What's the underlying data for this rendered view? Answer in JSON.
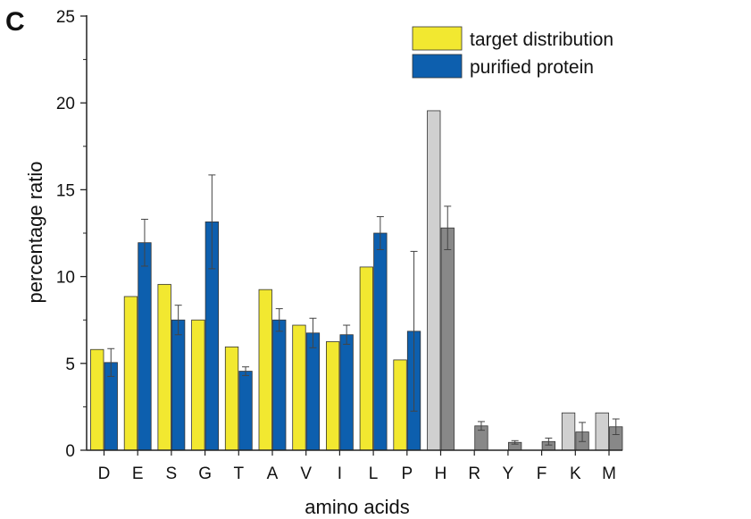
{
  "panel_label": "C",
  "chart_data": {
    "type": "bar",
    "xlabel": "amino acids",
    "ylabel": "percentage ratio",
    "ylim": [
      0,
      25
    ],
    "yticks": [
      0,
      5,
      10,
      15,
      20,
      25
    ],
    "grid": false,
    "legend_position": "top-right",
    "categories": [
      "D",
      "E",
      "S",
      "G",
      "T",
      "A",
      "V",
      "I",
      "L",
      "P",
      "H",
      "R",
      "Y",
      "F",
      "K",
      "M"
    ],
    "series": [
      {
        "name": "target distribution",
        "color": "#F2E830",
        "values": [
          5.8,
          8.85,
          9.55,
          7.5,
          5.95,
          9.25,
          7.2,
          6.25,
          10.55,
          5.2,
          19.55,
          null,
          null,
          null,
          2.15,
          2.15
        ],
        "point_colors": [
          null,
          null,
          null,
          null,
          null,
          null,
          null,
          null,
          null,
          null,
          "#D0D0D0",
          null,
          null,
          null,
          "#D0D0D0",
          "#D0D0D0"
        ]
      },
      {
        "name": "purified protein",
        "color": "#0D5FAE",
        "values": [
          5.05,
          11.95,
          7.5,
          13.15,
          4.55,
          7.5,
          6.75,
          6.65,
          12.5,
          6.85,
          12.8,
          1.4,
          0.45,
          0.5,
          1.05,
          1.35
        ],
        "errors": [
          0.8,
          1.35,
          0.85,
          2.7,
          0.25,
          0.65,
          0.85,
          0.55,
          0.95,
          4.6,
          1.25,
          0.25,
          0.1,
          0.2,
          0.55,
          0.45
        ],
        "point_colors": [
          null,
          null,
          null,
          null,
          null,
          null,
          null,
          null,
          null,
          null,
          "#888888",
          "#888888",
          "#888888",
          "#888888",
          "#888888",
          "#888888"
        ]
      }
    ]
  }
}
